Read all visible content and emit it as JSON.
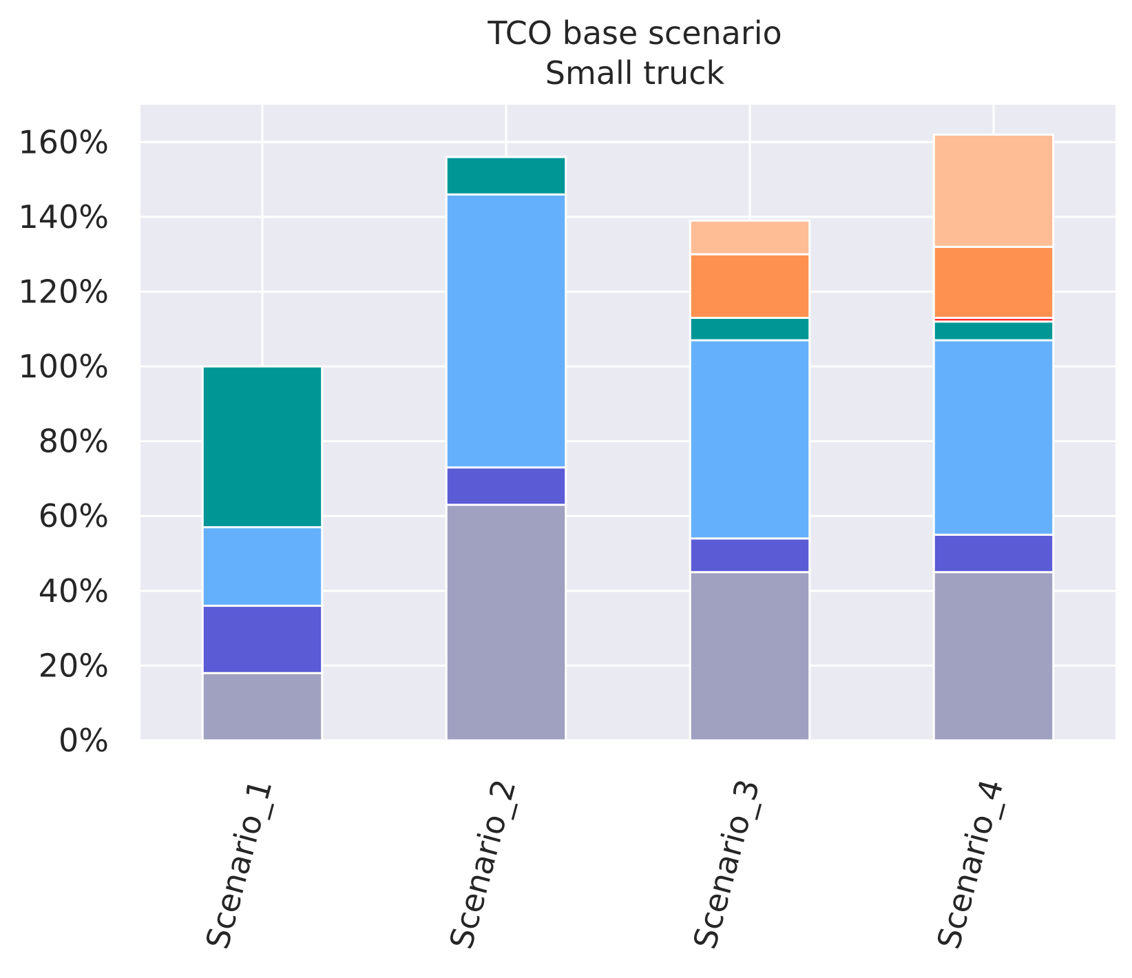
{
  "chart_data": {
    "type": "bar",
    "stacked": true,
    "title": "TCO base scenario",
    "subtitle": "Small truck",
    "xlabel": "",
    "ylabel": "",
    "categories": [
      "Scenario_1",
      "Scenario_2",
      "Scenario_3",
      "Scenario_4"
    ],
    "ylim": [
      0,
      170
    ],
    "yticks": [
      0,
      20,
      40,
      60,
      80,
      100,
      120,
      140,
      160
    ],
    "ytick_labels": [
      "0%",
      "20%",
      "40%",
      "60%",
      "80%",
      "100%",
      "120%",
      "140%",
      "160%"
    ],
    "grid": true,
    "legend": "none",
    "series": [
      {
        "name": "segment_1",
        "color": "#a0a0c0",
        "values": [
          18,
          63,
          45,
          45
        ]
      },
      {
        "name": "segment_2",
        "color": "#5b5bd6",
        "values": [
          18,
          10,
          9,
          10
        ]
      },
      {
        "name": "segment_3",
        "color": "#64b0fc",
        "values": [
          21,
          73,
          53,
          52
        ]
      },
      {
        "name": "segment_4",
        "color": "#009696",
        "values": [
          43,
          10,
          6,
          5
        ]
      },
      {
        "name": "segment_5",
        "color": "#ff2b2b",
        "values": [
          0,
          0,
          0,
          1
        ]
      },
      {
        "name": "segment_6",
        "color": "#fe9150",
        "values": [
          0,
          0,
          17,
          19
        ]
      },
      {
        "name": "segment_7",
        "color": "#ffbd96",
        "values": [
          0,
          0,
          9,
          30
        ]
      }
    ],
    "style": {
      "plot_background": "#eaeaf2",
      "grid_color": "#ffffff",
      "bar_edge_color": "#ffffff"
    }
  }
}
